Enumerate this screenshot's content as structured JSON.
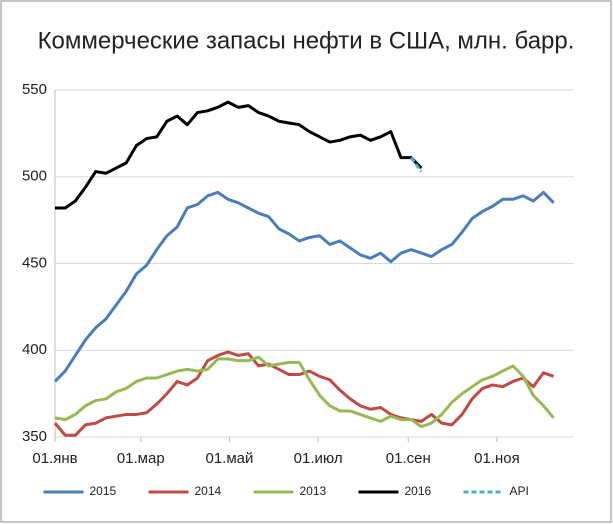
{
  "chart_data": {
    "type": "line",
    "title": "Коммерческие запасы нефти в США, млн. барр.",
    "x": [
      0,
      7,
      14,
      21,
      28,
      35,
      42,
      49,
      56,
      63,
      70,
      77,
      84,
      91,
      98,
      105,
      112,
      119,
      126,
      133,
      140,
      147,
      154,
      161,
      168,
      175,
      182,
      189,
      196,
      203,
      210,
      217,
      224,
      231,
      238,
      245,
      252,
      259,
      266,
      273,
      280,
      287,
      294,
      301,
      308,
      315,
      322,
      329,
      336,
      343
    ],
    "xlim": [
      0,
      357
    ],
    "xticks": [
      {
        "value": 0,
        "label": "01.янв"
      },
      {
        "value": 59,
        "label": "01.мар"
      },
      {
        "value": 120,
        "label": "01.май"
      },
      {
        "value": 181,
        "label": "01.июл"
      },
      {
        "value": 243,
        "label": "01.сен"
      },
      {
        "value": 304,
        "label": "01.ноя"
      }
    ],
    "ylim": [
      350,
      550
    ],
    "yticks": [
      350,
      400,
      450,
      500,
      550
    ],
    "grid": true,
    "legend": "bottom",
    "series": [
      {
        "name": "2015",
        "color": "#4a7ebb",
        "values": [
          382,
          388,
          397,
          406,
          413,
          418,
          426,
          434,
          444,
          449,
          458,
          466,
          471,
          482,
          484,
          489,
          491,
          487,
          485,
          482,
          479,
          477,
          470,
          467,
          463,
          465,
          466,
          461,
          463,
          459,
          455,
          453,
          456,
          451,
          456,
          458,
          456,
          454,
          458,
          461,
          468,
          476,
          480,
          483,
          487,
          487,
          489,
          486,
          491,
          485
        ]
      },
      {
        "name": "2014",
        "color": "#be4b48",
        "values": [
          358,
          351,
          351,
          357,
          358,
          361,
          362,
          363,
          363,
          364,
          369,
          375,
          382,
          380,
          384,
          394,
          397,
          399,
          397,
          398,
          391,
          392,
          389,
          386,
          386,
          388,
          385,
          383,
          377,
          372,
          368,
          366,
          367,
          363,
          361,
          360,
          359,
          363,
          358,
          357,
          363,
          372,
          378,
          380,
          379,
          382,
          384,
          379,
          387,
          385
        ]
      },
      {
        "name": "2013",
        "color": "#98b954",
        "values": [
          361,
          360,
          363,
          368,
          371,
          372,
          376,
          378,
          382,
          384,
          384,
          386,
          388,
          389,
          388,
          389,
          395,
          395,
          394,
          394,
          396,
          391,
          392,
          393,
          393,
          383,
          374,
          368,
          365,
          365,
          363,
          361,
          359,
          362,
          360,
          360,
          356,
          358,
          363,
          370,
          375,
          379,
          383,
          385,
          388,
          391,
          385,
          374,
          368,
          361
        ]
      },
      {
        "name": "2016",
        "color": "#000000",
        "values": [
          482,
          482,
          486,
          494,
          503,
          502,
          505,
          508,
          518,
          522,
          523,
          532,
          535,
          530,
          537,
          538,
          540,
          543,
          540,
          541,
          537,
          535,
          532,
          531,
          530,
          526,
          523,
          520,
          521,
          523,
          524,
          521,
          523,
          526,
          511,
          511,
          505,
          null,
          null,
          null,
          null,
          null,
          null,
          null,
          null,
          null,
          null,
          null,
          null,
          null
        ]
      },
      {
        "name": "API",
        "color": "#4bacc6",
        "dash": true,
        "values": [
          null,
          null,
          null,
          null,
          null,
          null,
          null,
          null,
          null,
          null,
          null,
          null,
          null,
          null,
          null,
          null,
          null,
          null,
          null,
          null,
          null,
          null,
          null,
          null,
          null,
          null,
          null,
          null,
          null,
          null,
          null,
          null,
          null,
          null,
          null,
          511,
          503,
          null,
          null,
          null,
          null,
          null,
          null,
          null,
          null,
          null,
          null,
          null,
          null,
          null
        ]
      }
    ]
  }
}
